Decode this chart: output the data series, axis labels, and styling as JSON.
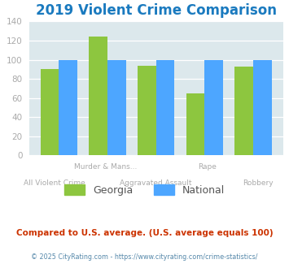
{
  "title": "2019 Violent Crime Comparison",
  "categories": [
    "All Violent Crime",
    "Murder & Mans...",
    "Aggravated Assault",
    "Rape",
    "Robbery"
  ],
  "georgia_values": [
    90,
    124,
    94,
    65,
    93
  ],
  "national_values": [
    100,
    100,
    100,
    100,
    100
  ],
  "georgia_color": "#8dc63f",
  "national_color": "#4da6ff",
  "ylim": [
    0,
    140
  ],
  "yticks": [
    0,
    20,
    40,
    60,
    80,
    100,
    120,
    140
  ],
  "title_color": "#1a7abf",
  "title_fontsize": 12,
  "bg_color": "#dce8ec",
  "tick_label_color": "#aaaaaa",
  "legend_georgia": "Georgia",
  "legend_national": "National",
  "footnote1": "Compared to U.S. average. (U.S. average equals 100)",
  "footnote2": "© 2025 CityRating.com - https://www.cityrating.com/crime-statistics/",
  "footnote1_color": "#cc3300",
  "footnote2_color": "#5588aa"
}
